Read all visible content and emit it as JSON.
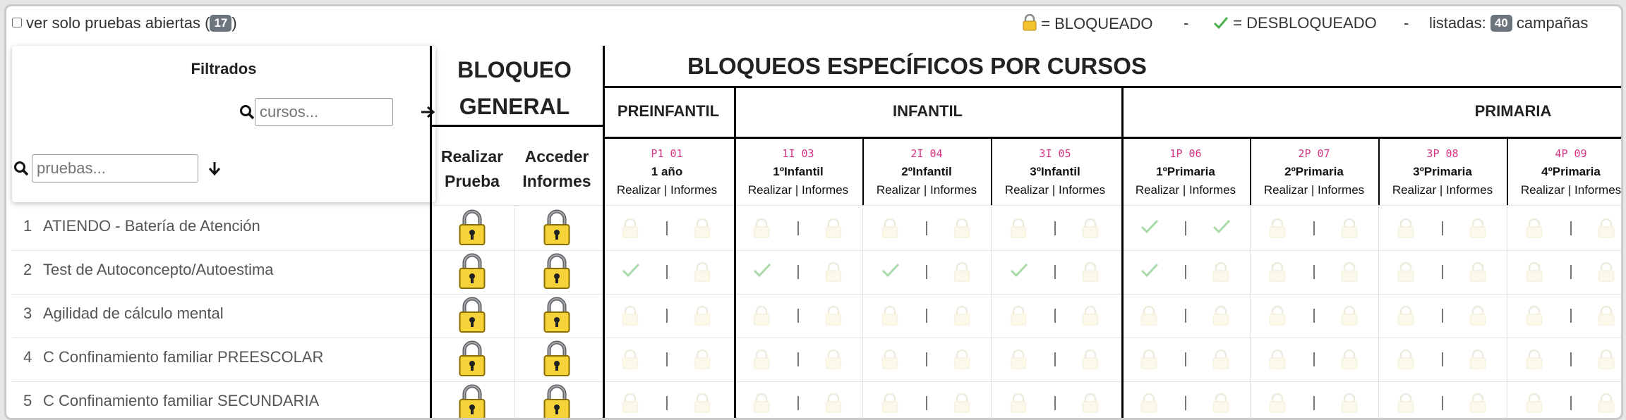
{
  "topbar": {
    "checkbox_label": "ver solo pruebas abiertas (",
    "checkbox_count": "17",
    "checkbox_close": ")",
    "legend_locked": "= BLOQUEADO",
    "dash1": "-",
    "legend_unlocked": "= DESBLOQUEADO",
    "dash2": "-",
    "listed_label": "listadas:",
    "listed_count": "40",
    "listed_suffix": "campañas"
  },
  "filters": {
    "title": "Filtrados",
    "courses_placeholder": "cursos...",
    "tests_placeholder": "pruebas..."
  },
  "general": {
    "title_line1": "BLOQUEO",
    "title_line2": "GENERAL",
    "col1_line1": "Realizar",
    "col1_line2": "Prueba",
    "col2_line1": "Acceder",
    "col2_line2": "Informes"
  },
  "specific": {
    "title": "BLOQUEOS ESPECÍFICOS POR CURSOS",
    "groups": [
      "PREINFANTIL",
      "INFANTIL",
      "PRIMARIA"
    ],
    "col_sub": "Realizar | Informes",
    "courses": [
      {
        "code": "P1 01",
        "name": "1 año"
      },
      {
        "code": "1I 03",
        "name": "1ºInfantil"
      },
      {
        "code": "2I 04",
        "name": "2ºInfantil"
      },
      {
        "code": "3I 05",
        "name": "3ºInfantil"
      },
      {
        "code": "1P 06",
        "name": "1ºPrimaria"
      },
      {
        "code": "2P 07",
        "name": "2ºPrimaria"
      },
      {
        "code": "3P 08",
        "name": "3ºPrimaria"
      },
      {
        "code": "4P 09",
        "name": "4ºPrimaria"
      }
    ]
  },
  "rows": [
    {
      "num": "1",
      "name": "ATIENDO - Batería de Atención",
      "states": [
        [
          "L",
          "L"
        ],
        [
          "L",
          "L"
        ],
        [
          "L",
          "L"
        ],
        [
          "L",
          "L"
        ],
        [
          "U",
          "U"
        ],
        [
          "L",
          "L"
        ],
        [
          "L",
          "L"
        ],
        [
          "L",
          "L"
        ]
      ]
    },
    {
      "num": "2",
      "name": "Test de Autoconcepto/Autoestima",
      "states": [
        [
          "U",
          "L"
        ],
        [
          "U",
          "L"
        ],
        [
          "U",
          "L"
        ],
        [
          "U",
          "L"
        ],
        [
          "U",
          "L"
        ],
        [
          "L",
          "L"
        ],
        [
          "L",
          "L"
        ],
        [
          "L",
          "L"
        ]
      ]
    },
    {
      "num": "3",
      "name": "Agilidad de cálculo mental",
      "states": [
        [
          "L",
          "L"
        ],
        [
          "L",
          "L"
        ],
        [
          "L",
          "L"
        ],
        [
          "L",
          "L"
        ],
        [
          "L",
          "L"
        ],
        [
          "L",
          "L"
        ],
        [
          "L",
          "L"
        ],
        [
          "L",
          "L"
        ]
      ]
    },
    {
      "num": "4",
      "name": "C Confinamiento familiar PREESCOLAR",
      "states": [
        [
          "L",
          "L"
        ],
        [
          "L",
          "L"
        ],
        [
          "L",
          "L"
        ],
        [
          "L",
          "L"
        ],
        [
          "L",
          "L"
        ],
        [
          "L",
          "L"
        ],
        [
          "L",
          "L"
        ],
        [
          "L",
          "L"
        ]
      ]
    },
    {
      "num": "5",
      "name": "C Confinamiento familiar SECUNDARIA",
      "states": [
        [
          "L",
          "L"
        ],
        [
          "L",
          "L"
        ],
        [
          "L",
          "L"
        ],
        [
          "L",
          "L"
        ],
        [
          "L",
          "L"
        ],
        [
          "L",
          "L"
        ],
        [
          "L",
          "L"
        ],
        [
          "L",
          "L"
        ]
      ]
    }
  ],
  "colors": {
    "pink": "#d63384",
    "badge": "#6c757d",
    "check": "#9ad49a"
  }
}
